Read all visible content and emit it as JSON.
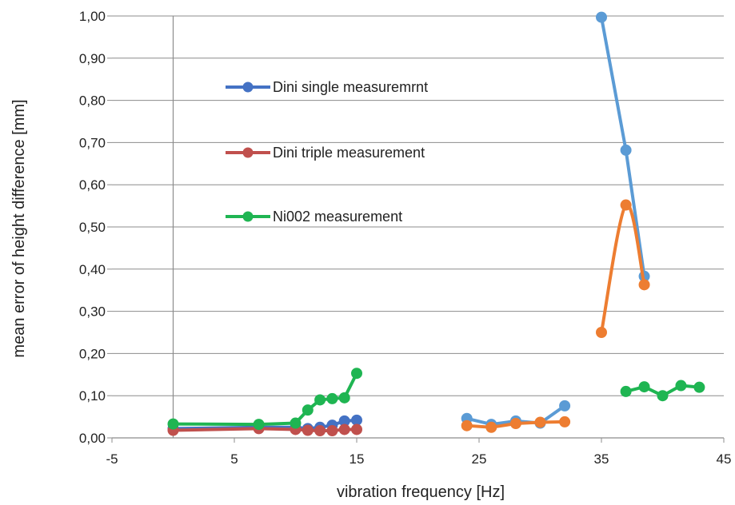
{
  "chart_data": {
    "type": "line",
    "title": "",
    "xlabel": "vibration frequency [Hz]",
    "ylabel": "mean error of height difference [mm]",
    "xlim": [
      -5,
      45
    ],
    "ylim": [
      0,
      1
    ],
    "xticks": [
      -5,
      5,
      15,
      25,
      35,
      45
    ],
    "yticks": [
      0,
      0.1,
      0.2,
      0.3,
      0.4,
      0.5,
      0.6,
      0.7,
      0.8,
      0.9,
      1.0
    ],
    "yticks_labels": [
      "0,00",
      "0,10",
      "0,20",
      "0,30",
      "0,40",
      "0,50",
      "0,60",
      "0,70",
      "0,80",
      "0,90",
      "1,00"
    ],
    "grid": "horizontal",
    "legend_position": "inside-top-left",
    "series": [
      {
        "name": "Dini single measuremrnt",
        "color": "#4472C4",
        "segments": [
          {
            "color": "#4472C4",
            "points": [
              [
                0,
                0.022
              ],
              [
                7,
                0.025
              ],
              [
                10,
                0.025
              ],
              [
                11,
                0.022
              ],
              [
                12,
                0.025
              ],
              [
                13,
                0.03
              ],
              [
                14,
                0.04
              ],
              [
                15,
                0.042
              ]
            ]
          },
          {
            "color": "#5B9BD5",
            "points": [
              [
                24,
                0.046
              ],
              [
                26,
                0.032
              ],
              [
                28,
                0.04
              ],
              [
                30,
                0.035
              ],
              [
                32,
                0.076
              ]
            ]
          },
          {
            "color": "#5B9BD5",
            "points": [
              [
                35,
                0.997
              ],
              [
                37,
                0.682
              ],
              [
                38.5,
                0.383
              ]
            ]
          }
        ]
      },
      {
        "name": "Dini triple measurement",
        "color": "#C0504D",
        "segments": [
          {
            "color": "#C0504D",
            "points": [
              [
                0,
                0.018
              ],
              [
                7,
                0.022
              ],
              [
                10,
                0.02
              ],
              [
                11,
                0.018
              ],
              [
                12,
                0.017
              ],
              [
                13,
                0.017
              ],
              [
                14,
                0.02
              ],
              [
                15,
                0.02
              ]
            ]
          },
          {
            "color": "#ED7D31",
            "points": [
              [
                24,
                0.029
              ],
              [
                26,
                0.025
              ],
              [
                28,
                0.034
              ],
              [
                30,
                0.037
              ],
              [
                32,
                0.038
              ]
            ]
          },
          {
            "color": "#ED7D31",
            "smooth": true,
            "points": [
              [
                35,
                0.25
              ],
              [
                37,
                0.552
              ],
              [
                38.5,
                0.363
              ]
            ]
          }
        ]
      },
      {
        "name": "Ni002 measurement",
        "color": "#1FB552",
        "segments": [
          {
            "color": "#1FB552",
            "points": [
              [
                0,
                0.033
              ],
              [
                7,
                0.032
              ],
              [
                10,
                0.035
              ],
              [
                11,
                0.066
              ],
              [
                12,
                0.09
              ],
              [
                13,
                0.093
              ],
              [
                14,
                0.095
              ],
              [
                15,
                0.153
              ]
            ]
          },
          {
            "color": "#1FB552",
            "points": [
              [
                37,
                0.11
              ],
              [
                38.5,
                0.121
              ],
              [
                40,
                0.1
              ],
              [
                41.5,
                0.124
              ],
              [
                43,
                0.12
              ]
            ]
          }
        ]
      }
    ]
  }
}
